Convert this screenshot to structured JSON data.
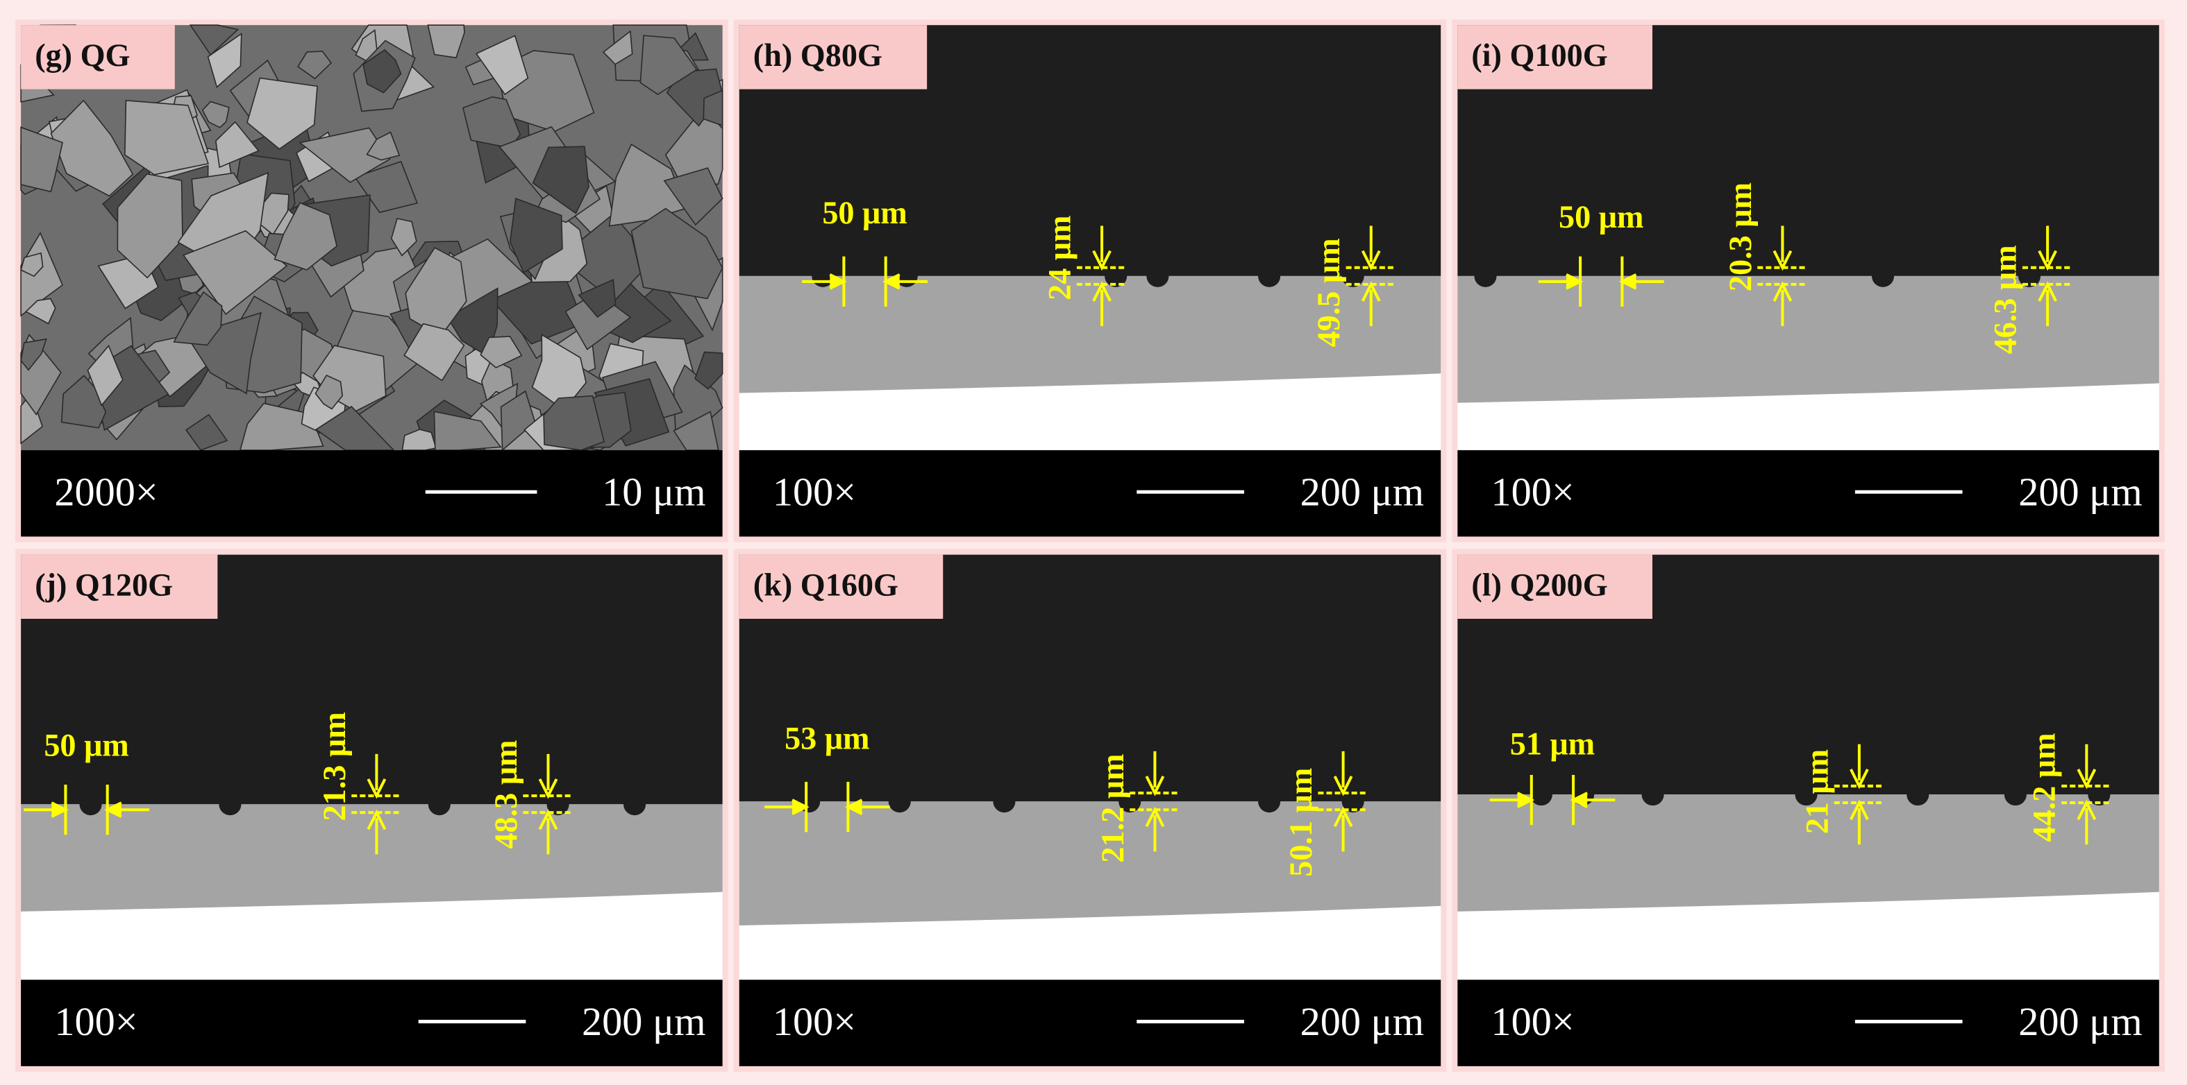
{
  "panels": [
    {
      "label": "(g) QG",
      "magnification": "2000×",
      "scale_bar": "10 μm",
      "annotations": []
    },
    {
      "label": "(h) Q80G",
      "magnification": "100×",
      "scale_bar": "200 μm",
      "annotations": [
        "50 μm",
        "24 μm",
        "49.5 μm"
      ]
    },
    {
      "label": "(i) Q100G",
      "magnification": "100×",
      "scale_bar": "200 μm",
      "annotations": [
        "50 μm",
        "20.3 μm",
        "46.3 μm"
      ]
    },
    {
      "label": "(j) Q120G",
      "magnification": "100×",
      "scale_bar": "200 μm",
      "annotations": [
        "50 μm",
        "21.3 μm",
        "48.3 μm"
      ]
    },
    {
      "label": "(k) Q160G",
      "magnification": "100×",
      "scale_bar": "200 μm",
      "annotations": [
        "53 μm",
        "21.2 μm",
        "50.1 μm"
      ]
    },
    {
      "label": "(l) Q200G",
      "magnification": "100×",
      "scale_bar": "200 μm",
      "annotations": [
        "51 μm",
        "21 μm",
        "44.2 μm"
      ]
    }
  ]
}
